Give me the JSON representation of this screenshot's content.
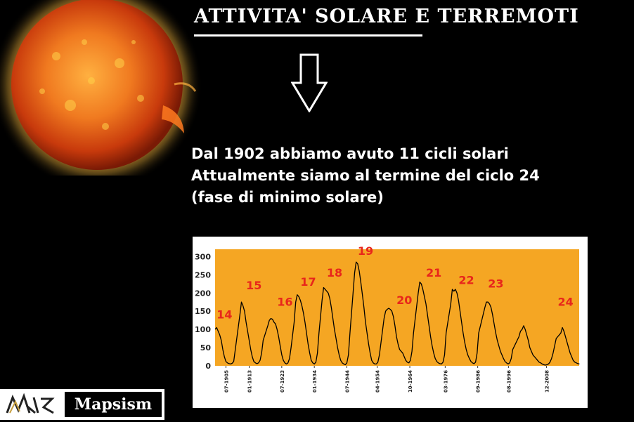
{
  "header": {
    "title": "ATTIVITA' SOLARE E TERREMOTI"
  },
  "info": {
    "line1": "Dal 1902 abbiamo avuto 11 cicli solari",
    "line2": "Attualmente siamo al termine del ciclo 24",
    "line3": "(fase di minimo solare)"
  },
  "logo": {
    "text": "Mapsism"
  },
  "colors": {
    "background": "#000000",
    "plot_area": "#f5a623",
    "line": "#000000",
    "cycle_labels": "#e8261b",
    "sun_core": "#ff8a2a",
    "sun_edge": "#c0300a"
  },
  "icons": [
    "sun-image",
    "down-arrow-icon",
    "mapsism-logo-icon"
  ],
  "chart_data": {
    "type": "line",
    "title": "",
    "xlabel": "",
    "ylabel": "",
    "ylim": [
      0,
      320
    ],
    "yticks": [
      0,
      50,
      100,
      150,
      200,
      250,
      300
    ],
    "xlim": [
      "1902-01",
      "2019-06"
    ],
    "xtick_labels": [
      "07-1905",
      "01-1913",
      "07-1923",
      "01-1934",
      "07-1944",
      "04-1954",
      "10-1964",
      "03-1976",
      "09-1986",
      "08-1996",
      "12-2008"
    ],
    "xtick_years": [
      1905.5,
      1913.0,
      1923.5,
      1934.0,
      1944.5,
      1954.3,
      1964.8,
      1976.2,
      1986.7,
      1996.6,
      2008.9
    ],
    "grid": false,
    "series": [
      {
        "values": [
          [
            1902.0,
            100
          ],
          [
            1902.5,
            105
          ],
          [
            1903.0,
            95
          ],
          [
            1903.5,
            85
          ],
          [
            1904.0,
            70
          ],
          [
            1904.5,
            45
          ],
          [
            1905.0,
            25
          ],
          [
            1905.5,
            12
          ],
          [
            1906.0,
            8
          ],
          [
            1906.5,
            6
          ],
          [
            1907.0,
            5
          ],
          [
            1907.5,
            7
          ],
          [
            1908.0,
            12
          ],
          [
            1910.0,
            140
          ],
          [
            1910.5,
            175
          ],
          [
            1911.0,
            165
          ],
          [
            1911.5,
            150
          ],
          [
            1912.0,
            120
          ],
          [
            1912.5,
            95
          ],
          [
            1913.0,
            70
          ],
          [
            1913.5,
            45
          ],
          [
            1914.0,
            25
          ],
          [
            1914.5,
            12
          ],
          [
            1915.0,
            8
          ],
          [
            1915.5,
            6
          ],
          [
            1916.0,
            8
          ],
          [
            1916.5,
            15
          ],
          [
            1917.0,
            35
          ],
          [
            1917.5,
            70
          ],
          [
            1919.0,
            110
          ],
          [
            1919.5,
            125
          ],
          [
            1920.0,
            130
          ],
          [
            1920.5,
            128
          ],
          [
            1921.0,
            120
          ],
          [
            1921.5,
            115
          ],
          [
            1922.0,
            100
          ],
          [
            1922.5,
            80
          ],
          [
            1923.0,
            55
          ],
          [
            1923.5,
            30
          ],
          [
            1924.0,
            15
          ],
          [
            1924.5,
            8
          ],
          [
            1925.0,
            5
          ],
          [
            1925.5,
            8
          ],
          [
            1926.0,
            20
          ],
          [
            1926.5,
            50
          ],
          [
            1927.5,
            120
          ],
          [
            1928.0,
            175
          ],
          [
            1928.5,
            195
          ],
          [
            1929.0,
            190
          ],
          [
            1929.5,
            180
          ],
          [
            1930.0,
            165
          ],
          [
            1930.5,
            145
          ],
          [
            1931.0,
            120
          ],
          [
            1931.5,
            90
          ],
          [
            1932.0,
            60
          ],
          [
            1932.5,
            35
          ],
          [
            1933.0,
            15
          ],
          [
            1933.5,
            8
          ],
          [
            1934.0,
            5
          ],
          [
            1934.5,
            10
          ],
          [
            1935.0,
            35
          ],
          [
            1935.5,
            90
          ],
          [
            1936.5,
            180
          ],
          [
            1937.0,
            215
          ],
          [
            1937.5,
            210
          ],
          [
            1938.0,
            205
          ],
          [
            1938.5,
            200
          ],
          [
            1939.0,
            185
          ],
          [
            1939.5,
            160
          ],
          [
            1940.0,
            130
          ],
          [
            1940.5,
            100
          ],
          [
            1941.0,
            75
          ],
          [
            1941.5,
            50
          ],
          [
            1942.0,
            30
          ],
          [
            1942.5,
            15
          ],
          [
            1943.0,
            8
          ],
          [
            1943.5,
            5
          ],
          [
            1944.0,
            3
          ],
          [
            1944.5,
            8
          ],
          [
            1945.0,
            30
          ],
          [
            1945.5,
            90
          ],
          [
            1946.5,
            200
          ],
          [
            1947.0,
            255
          ],
          [
            1947.5,
            285
          ],
          [
            1948.0,
            280
          ],
          [
            1948.5,
            260
          ],
          [
            1949.0,
            230
          ],
          [
            1949.5,
            195
          ],
          [
            1950.0,
            160
          ],
          [
            1950.5,
            120
          ],
          [
            1951.0,
            90
          ],
          [
            1951.5,
            60
          ],
          [
            1952.0,
            35
          ],
          [
            1952.5,
            15
          ],
          [
            1953.0,
            8
          ],
          [
            1953.5,
            5
          ],
          [
            1954.0,
            5
          ],
          [
            1954.5,
            10
          ],
          [
            1955.0,
            30
          ],
          [
            1956.5,
            130
          ],
          [
            1957.0,
            150
          ],
          [
            1957.5,
            155
          ],
          [
            1958.0,
            158
          ],
          [
            1958.5,
            155
          ],
          [
            1959.0,
            150
          ],
          [
            1959.5,
            135
          ],
          [
            1960.0,
            110
          ],
          [
            1960.5,
            80
          ],
          [
            1961.0,
            60
          ],
          [
            1961.5,
            45
          ],
          [
            1962.0,
            40
          ],
          [
            1962.5,
            35
          ],
          [
            1963.0,
            25
          ],
          [
            1963.5,
            15
          ],
          [
            1964.0,
            10
          ],
          [
            1964.5,
            8
          ],
          [
            1965.0,
            15
          ],
          [
            1965.5,
            40
          ],
          [
            1966.0,
            90
          ],
          [
            1967.5,
            200
          ],
          [
            1968.0,
            230
          ],
          [
            1968.5,
            225
          ],
          [
            1969.0,
            210
          ],
          [
            1969.5,
            190
          ],
          [
            1970.0,
            170
          ],
          [
            1970.5,
            140
          ],
          [
            1971.0,
            110
          ],
          [
            1971.5,
            80
          ],
          [
            1972.0,
            55
          ],
          [
            1972.5,
            35
          ],
          [
            1973.0,
            20
          ],
          [
            1973.5,
            12
          ],
          [
            1974.0,
            8
          ],
          [
            1974.5,
            6
          ],
          [
            1975.0,
            5
          ],
          [
            1975.5,
            10
          ],
          [
            1976.0,
            30
          ],
          [
            1976.5,
            90
          ],
          [
            1978.0,
            170
          ],
          [
            1978.5,
            210
          ],
          [
            1979.0,
            205
          ],
          [
            1979.5,
            210
          ],
          [
            1980.0,
            200
          ],
          [
            1980.5,
            180
          ],
          [
            1981.0,
            150
          ],
          [
            1981.5,
            120
          ],
          [
            1982.0,
            90
          ],
          [
            1982.5,
            65
          ],
          [
            1983.0,
            45
          ],
          [
            1983.5,
            30
          ],
          [
            1984.0,
            20
          ],
          [
            1984.5,
            12
          ],
          [
            1985.0,
            8
          ],
          [
            1985.5,
            6
          ],
          [
            1986.0,
            10
          ],
          [
            1986.5,
            35
          ],
          [
            1987.0,
            90
          ],
          [
            1989.0,
            160
          ],
          [
            1989.5,
            175
          ],
          [
            1990.0,
            175
          ],
          [
            1990.5,
            170
          ],
          [
            1991.0,
            160
          ],
          [
            1991.5,
            140
          ],
          [
            1992.0,
            115
          ],
          [
            1992.5,
            90
          ],
          [
            1993.0,
            70
          ],
          [
            1993.5,
            55
          ],
          [
            1994.0,
            40
          ],
          [
            1994.5,
            30
          ],
          [
            1995.0,
            20
          ],
          [
            1995.5,
            12
          ],
          [
            1996.0,
            8
          ],
          [
            1996.5,
            5
          ],
          [
            1997.0,
            8
          ],
          [
            1997.5,
            20
          ],
          [
            1998.0,
            45
          ],
          [
            2000.0,
            80
          ],
          [
            2000.5,
            95
          ],
          [
            2001.0,
            100
          ],
          [
            2001.5,
            110
          ],
          [
            2002.0,
            100
          ],
          [
            2002.5,
            85
          ],
          [
            2003.0,
            70
          ],
          [
            2003.5,
            50
          ],
          [
            2004.0,
            40
          ],
          [
            2004.5,
            30
          ],
          [
            2005.0,
            25
          ],
          [
            2005.5,
            20
          ],
          [
            2006.0,
            15
          ],
          [
            2006.5,
            10
          ],
          [
            2007.0,
            8
          ],
          [
            2007.5,
            5
          ],
          [
            2008.0,
            3
          ],
          [
            2008.5,
            2
          ],
          [
            2009.0,
            3
          ],
          [
            2009.5,
            5
          ],
          [
            2010.0,
            10
          ],
          [
            2010.5,
            20
          ],
          [
            2011.0,
            35
          ],
          [
            2011.5,
            55
          ],
          [
            2012.0,
            75
          ],
          [
            2012.5,
            80
          ],
          [
            2013.0,
            85
          ],
          [
            2013.5,
            90
          ],
          [
            2014.0,
            105
          ],
          [
            2014.5,
            95
          ],
          [
            2015.0,
            80
          ],
          [
            2015.5,
            65
          ],
          [
            2016.0,
            50
          ],
          [
            2016.5,
            35
          ],
          [
            2017.0,
            25
          ],
          [
            2017.5,
            15
          ],
          [
            2018.0,
            10
          ],
          [
            2018.5,
            8
          ],
          [
            2019.0,
            6
          ],
          [
            2019.5,
            5
          ]
        ]
      }
    ],
    "annotations": [
      {
        "text": "14",
        "x": 1902.5,
        "y": 130
      },
      {
        "text": "15",
        "x": 1912.0,
        "y": 210
      },
      {
        "text": "16",
        "x": 1922.0,
        "y": 165
      },
      {
        "text": "17",
        "x": 1929.5,
        "y": 220
      },
      {
        "text": "18",
        "x": 1938.0,
        "y": 245
      },
      {
        "text": "19",
        "x": 1948.0,
        "y": 305
      },
      {
        "text": "20",
        "x": 1960.5,
        "y": 170
      },
      {
        "text": "21",
        "x": 1970.0,
        "y": 245
      },
      {
        "text": "22",
        "x": 1980.5,
        "y": 225
      },
      {
        "text": "23",
        "x": 1990.0,
        "y": 215
      },
      {
        "text": "24",
        "x": 2012.5,
        "y": 165
      }
    ]
  }
}
